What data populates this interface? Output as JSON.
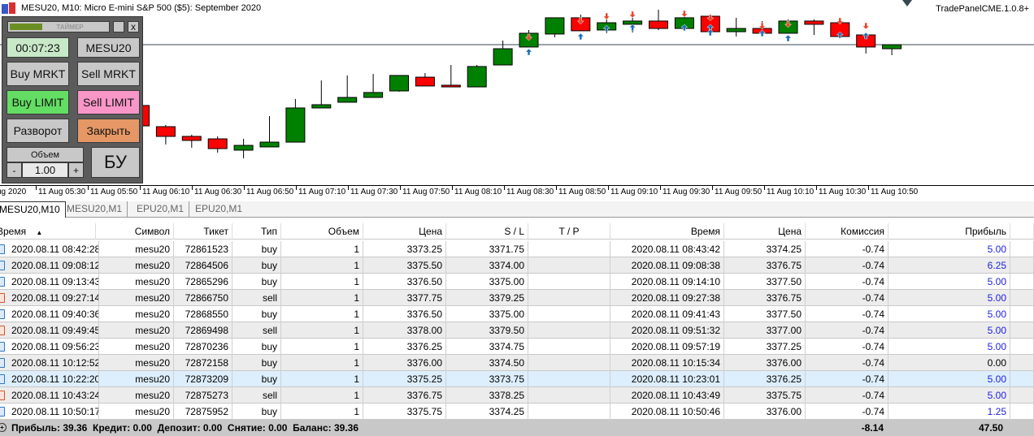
{
  "window": {
    "title": "MESU20, M10:  Micro E-mini S&P 500 ($5): September 2020",
    "ea_label": "TradePanelCME.1.0.8+"
  },
  "panel": {
    "timer_label": "ТАЙМЕР",
    "close": "x",
    "timer": "00:07:23",
    "symbol": "MESU20",
    "buy_market": "Buy MRKT",
    "sell_market": "Sell MRKT",
    "buy_limit": "Buy LIMIT",
    "sell_limit": "Sell LIMIT",
    "reverse": "Разворот",
    "close_all": "Закрыть",
    "volume_label": "Объем",
    "minus": "-",
    "volume": "1.00",
    "plus": "+",
    "breakeven": "БУ",
    "timer_progress": 0.4
  },
  "colors": {
    "bull": "#008000",
    "bear": "#ff0000",
    "buy_marker": "#1f6fb5",
    "sell_marker": "#e8452c",
    "panel": "#5b5b5b",
    "buy_limit": "#63dd63",
    "sell_limit": "#f896c8",
    "close_all": "#e59866",
    "timer_bg": "#c8e8c8",
    "selected_row": "#ddeefc"
  },
  "chart_data": {
    "type": "candlestick",
    "price_line": 3376.56,
    "price_range": [
      3365.75,
      3380
    ],
    "candles": [
      {
        "t": "06:00",
        "o": 3371.88,
        "h": 3372,
        "l": 3370.19,
        "c": 3370.31
      },
      {
        "t": "06:10",
        "o": 3370.25,
        "h": 3370.38,
        "l": 3368.88,
        "c": 3369.5
      },
      {
        "t": "06:20",
        "o": 3369.5,
        "h": 3369.63,
        "l": 3368.63,
        "c": 3369.19
      },
      {
        "t": "06:30",
        "o": 3369.31,
        "h": 3369.5,
        "l": 3368.25,
        "c": 3368.56
      },
      {
        "t": "06:40",
        "o": 3368.44,
        "h": 3369.31,
        "l": 3367.81,
        "c": 3368.81
      },
      {
        "t": "06:50",
        "o": 3368.69,
        "h": 3371.06,
        "l": 3368.69,
        "c": 3369.06
      },
      {
        "t": "07:00",
        "o": 3369.06,
        "h": 3372.38,
        "l": 3369.06,
        "c": 3371.69
      },
      {
        "t": "07:10",
        "o": 3371.69,
        "h": 3373.81,
        "l": 3371.69,
        "c": 3371.94
      },
      {
        "t": "07:20",
        "o": 3372.13,
        "h": 3374.19,
        "l": 3372.13,
        "c": 3372.5
      },
      {
        "t": "07:30",
        "o": 3372.5,
        "h": 3374.31,
        "l": 3372.5,
        "c": 3372.88
      },
      {
        "t": "07:40",
        "o": 3373,
        "h": 3374.19,
        "l": 3372.94,
        "c": 3374.19
      },
      {
        "t": "07:50",
        "o": 3374.06,
        "h": 3374.38,
        "l": 3373.38,
        "c": 3373.38
      },
      {
        "t": "08:00",
        "o": 3373.44,
        "h": 3375,
        "l": 3373.31,
        "c": 3373.31
      },
      {
        "t": "08:10",
        "o": 3373.31,
        "h": 3375,
        "l": 3373.31,
        "c": 3374.88
      },
      {
        "t": "08:20",
        "o": 3375,
        "h": 3376.88,
        "l": 3375,
        "c": 3376.25
      },
      {
        "t": "08:30",
        "o": 3376.38,
        "h": 3377.69,
        "l": 3376.38,
        "c": 3377.44
      },
      {
        "t": "08:40",
        "o": 3377.38,
        "h": 3378.63,
        "l": 3377.13,
        "c": 3378.63
      },
      {
        "t": "08:50",
        "o": 3378.63,
        "h": 3378.88,
        "l": 3377.63,
        "c": 3377.63
      },
      {
        "t": "09:00",
        "o": 3377.69,
        "h": 3378.63,
        "l": 3377.44,
        "c": 3378.25
      },
      {
        "t": "09:10",
        "o": 3378.13,
        "h": 3378.63,
        "l": 3377.5,
        "c": 3378.38
      },
      {
        "t": "09:20",
        "o": 3378.38,
        "h": 3379.25,
        "l": 3377.69,
        "c": 3377.81
      },
      {
        "t": "09:30",
        "o": 3377.81,
        "h": 3379.06,
        "l": 3377.81,
        "c": 3378.63
      },
      {
        "t": "09:40",
        "o": 3378.75,
        "h": 3378.75,
        "l": 3377.56,
        "c": 3377.56
      },
      {
        "t": "09:50",
        "o": 3377.56,
        "h": 3378.63,
        "l": 3377.19,
        "c": 3377.81
      },
      {
        "t": "10:00",
        "o": 3377.81,
        "h": 3378.38,
        "l": 3377.44,
        "c": 3377.44
      },
      {
        "t": "10:10",
        "o": 3377.44,
        "h": 3378.5,
        "l": 3377.44,
        "c": 3378.38
      },
      {
        "t": "10:20",
        "o": 3378.38,
        "h": 3378.5,
        "l": 3377.31,
        "c": 3378.13
      },
      {
        "t": "10:30",
        "o": 3378.25,
        "h": 3378.25,
        "l": 3377.19,
        "c": 3377.19
      },
      {
        "t": "10:40",
        "o": 3377.31,
        "h": 3377.31,
        "l": 3375.88,
        "c": 3376.38
      },
      {
        "t": "10:50",
        "o": 3376.25,
        "h": 3376.56,
        "l": 3375.75,
        "c": 3376.56
      }
    ],
    "markers": [
      {
        "i": 15,
        "dir": "down",
        "p": 3377.13
      },
      {
        "i": 15,
        "dir": "up",
        "p": 3376
      },
      {
        "i": 17,
        "dir": "down",
        "p": 3378.38
      },
      {
        "i": 17,
        "dir": "up",
        "p": 3377.19
      },
      {
        "i": 18,
        "dir": "down",
        "p": 3378.75
      },
      {
        "i": 18,
        "dir": "up",
        "p": 3377.81
      },
      {
        "i": 19,
        "dir": "down",
        "p": 3378.88
      },
      {
        "i": 19,
        "dir": "up",
        "p": 3377.88
      },
      {
        "i": 21,
        "dir": "down",
        "p": 3378.94
      },
      {
        "i": 21,
        "dir": "up",
        "p": 3377.88
      },
      {
        "i": 22,
        "dir": "down",
        "p": 3378.63
      },
      {
        "i": 22,
        "dir": "up",
        "p": 3377.88
      },
      {
        "i": 22,
        "dir": "up",
        "p": 3377.5
      },
      {
        "i": 24,
        "dir": "down",
        "p": 3378
      },
      {
        "i": 24,
        "dir": "up",
        "p": 3377.44
      },
      {
        "i": 25,
        "dir": "down",
        "p": 3378.13
      },
      {
        "i": 25,
        "dir": "up",
        "p": 3377.06
      },
      {
        "i": 27,
        "dir": "down",
        "p": 3378.38
      },
      {
        "i": 27,
        "dir": "up",
        "p": 3377.31
      },
      {
        "i": 28,
        "dir": "down",
        "p": 3378
      },
      {
        "i": 28,
        "dir": "up",
        "p": 3377.25
      }
    ],
    "x_ticks": [
      "ug 2020",
      "11 Aug 05:30",
      "11 Aug 05:50",
      "11 Aug 06:10",
      "11 Aug 06:30",
      "11 Aug 06:50",
      "11 Aug 07:10",
      "11 Aug 07:30",
      "11 Aug 07:50",
      "11 Aug 08:10",
      "11 Aug 08:30",
      "11 Aug 08:50",
      "11 Aug 09:10",
      "11 Aug 09:30",
      "11 Aug 09:50",
      "11 Aug 10:10",
      "11 Aug 10:30",
      "11 Aug 10:50"
    ]
  },
  "tabs": [
    "MESU20,M10",
    "MESU20,M1",
    "EPU20,M1",
    "EPU20,M1"
  ],
  "table": {
    "headers": [
      "Время",
      "Символ",
      "Тикет",
      "Тип",
      "Объем",
      "Цена",
      "S / L",
      "T / P",
      "Время",
      "Цена",
      "Комиссия",
      "Прибыль"
    ],
    "rows": [
      [
        "2020.08.11 08:42:28",
        "mesu20",
        "72861523",
        "buy",
        "1",
        "3373.25",
        "3371.75",
        "",
        "2020.08.11 08:43:42",
        "3374.25",
        "-0.74",
        "5.00"
      ],
      [
        "2020.08.11 09:08:12",
        "mesu20",
        "72864506",
        "buy",
        "1",
        "3375.50",
        "3374.00",
        "",
        "2020.08.11 09:08:38",
        "3376.75",
        "-0.74",
        "6.25"
      ],
      [
        "2020.08.11 09:13:43",
        "mesu20",
        "72865296",
        "buy",
        "1",
        "3376.50",
        "3375.00",
        "",
        "2020.08.11 09:14:10",
        "3377.50",
        "-0.74",
        "5.00"
      ],
      [
        "2020.08.11 09:27:14",
        "mesu20",
        "72866750",
        "sell",
        "1",
        "3377.75",
        "3379.25",
        "",
        "2020.08.11 09:27:38",
        "3376.75",
        "-0.74",
        "5.00"
      ],
      [
        "2020.08.11 09:40:36",
        "mesu20",
        "72868550",
        "buy",
        "1",
        "3376.50",
        "3375.00",
        "",
        "2020.08.11 09:41:43",
        "3377.50",
        "-0.74",
        "5.00"
      ],
      [
        "2020.08.11 09:49:45",
        "mesu20",
        "72869498",
        "sell",
        "1",
        "3378.00",
        "3379.50",
        "",
        "2020.08.11 09:51:32",
        "3377.00",
        "-0.74",
        "5.00"
      ],
      [
        "2020.08.11 09:56:23",
        "mesu20",
        "72870236",
        "buy",
        "1",
        "3376.25",
        "3374.75",
        "",
        "2020.08.11 09:57:19",
        "3377.25",
        "-0.74",
        "5.00"
      ],
      [
        "2020.08.11 10:12:52",
        "mesu20",
        "72872158",
        "buy",
        "1",
        "3376.00",
        "3374.50",
        "",
        "2020.08.11 10:15:34",
        "3376.00",
        "-0.74",
        "0.00"
      ],
      [
        "2020.08.11 10:22:20",
        "mesu20",
        "72873209",
        "buy",
        "1",
        "3375.25",
        "3373.75",
        "",
        "2020.08.11 10:23:01",
        "3376.25",
        "-0.74",
        "5.00"
      ],
      [
        "2020.08.11 10:43:24",
        "mesu20",
        "72875273",
        "sell",
        "1",
        "3376.75",
        "3378.25",
        "",
        "2020.08.11 10:43:49",
        "3375.75",
        "-0.74",
        "5.00"
      ],
      [
        "2020.08.11 10:50:17",
        "mesu20",
        "72875952",
        "buy",
        "1",
        "3375.75",
        "3374.25",
        "",
        "2020.08.11 10:50:46",
        "3376.00",
        "-0.74",
        "1.25"
      ]
    ],
    "selected_row": 8
  },
  "footer": {
    "summary": "Прибыль: 39.36  Кредит: 0.00  Депозит: 0.00  Снятие: 0.00  Баланс: 39.36",
    "commission_total": "-8.14",
    "profit_total": "47.50"
  }
}
